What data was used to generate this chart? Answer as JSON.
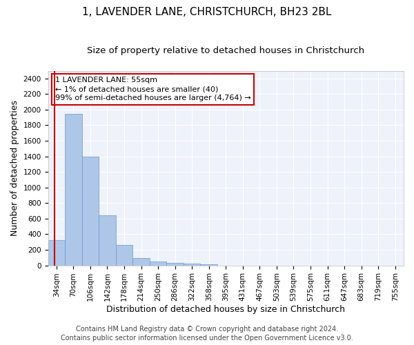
{
  "title": "1, LAVENDER LANE, CHRISTCHURCH, BH23 2BL",
  "subtitle": "Size of property relative to detached houses in Christchurch",
  "xlabel": "Distribution of detached houses by size in Christchurch",
  "ylabel": "Number of detached properties",
  "bar_color": "#aec6e8",
  "bar_edge_color": "#6699cc",
  "bar_width": 1.0,
  "categories": [
    "34sqm",
    "70sqm",
    "106sqm",
    "142sqm",
    "178sqm",
    "214sqm",
    "250sqm",
    "286sqm",
    "322sqm",
    "358sqm",
    "395sqm",
    "431sqm",
    "467sqm",
    "503sqm",
    "539sqm",
    "575sqm",
    "611sqm",
    "647sqm",
    "683sqm",
    "719sqm",
    "755sqm"
  ],
  "values": [
    320,
    1950,
    1400,
    640,
    260,
    90,
    50,
    35,
    20,
    10,
    0,
    0,
    0,
    0,
    0,
    0,
    0,
    0,
    0,
    0,
    0
  ],
  "ylim": [
    0,
    2500
  ],
  "yticks": [
    0,
    200,
    400,
    600,
    800,
    1000,
    1200,
    1400,
    1600,
    1800,
    2000,
    2200,
    2400
  ],
  "property_line_x": -0.1,
  "annotation_text": "1 LAVENDER LANE: 55sqm\n← 1% of detached houses are smaller (40)\n99% of semi-detached houses are larger (4,764) →",
  "annotation_box_color": "#ffffff",
  "annotation_box_edge": "#cc0000",
  "property_line_color": "#cc0000",
  "footer1": "Contains HM Land Registry data © Crown copyright and database right 2024.",
  "footer2": "Contains public sector information licensed under the Open Government Licence v3.0.",
  "bg_color": "#eef2fb",
  "grid_color": "#ffffff",
  "title_fontsize": 11,
  "subtitle_fontsize": 9.5,
  "tick_fontsize": 7.5,
  "label_fontsize": 9,
  "footer_fontsize": 7,
  "annotation_fontsize": 8
}
